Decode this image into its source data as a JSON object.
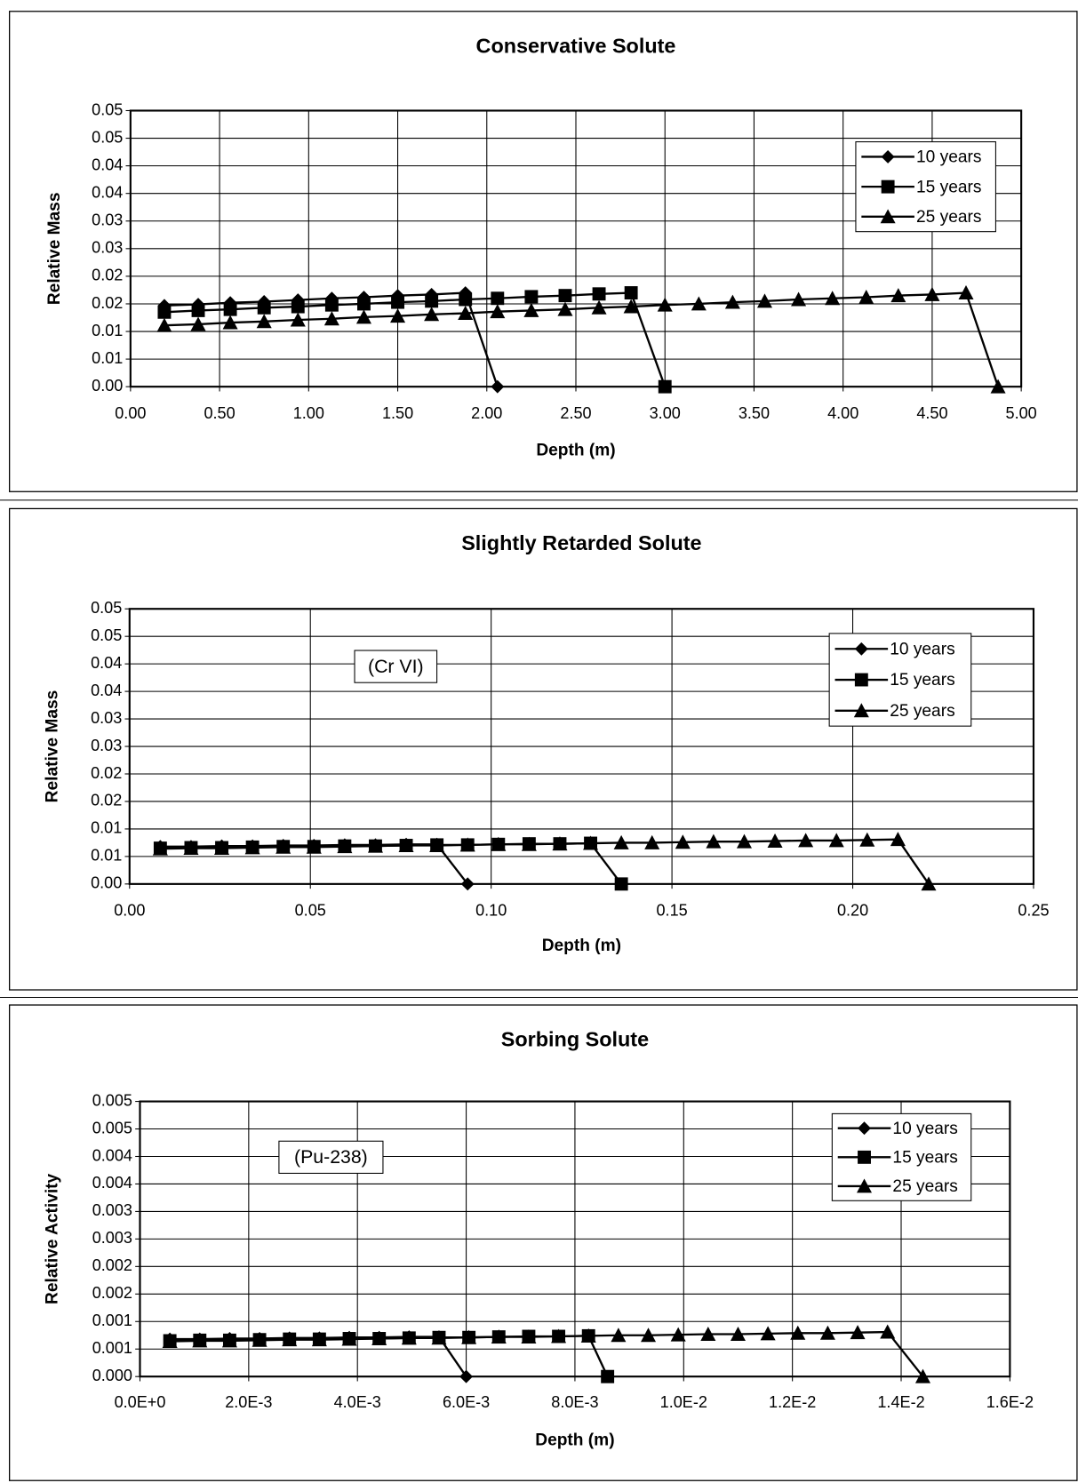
{
  "chart_data": [
    {
      "type": "line",
      "title": "Conservative Solute",
      "x_label": "Depth (m)",
      "y_label": "Relative Mass",
      "grid": true,
      "legend": "upper right",
      "xlim": [
        0,
        5
      ],
      "xticks": [
        {
          "value": 0,
          "label": "0.00"
        },
        {
          "value": 0.5,
          "label": "0.50"
        },
        {
          "value": 1,
          "label": "1.00"
        },
        {
          "value": 1.5,
          "label": "1.50"
        },
        {
          "value": 2,
          "label": "2.00"
        },
        {
          "value": 2.5,
          "label": "2.50"
        },
        {
          "value": 3,
          "label": "3.00"
        },
        {
          "value": 3.5,
          "label": "3.50"
        },
        {
          "value": 4,
          "label": "4.00"
        },
        {
          "value": 4.5,
          "label": "4.50"
        },
        {
          "value": 5,
          "label": "5.00"
        }
      ],
      "ylim": [
        0,
        0.05
      ],
      "yticks": [
        {
          "value": 0,
          "label": "0.00"
        },
        {
          "value": 0.005,
          "label": "0.01"
        },
        {
          "value": 0.01,
          "label": "0.01"
        },
        {
          "value": 0.015,
          "label": "0.02"
        },
        {
          "value": 0.02,
          "label": "0.02"
        },
        {
          "value": 0.025,
          "label": "0.03"
        },
        {
          "value": 0.03,
          "label": "0.03"
        },
        {
          "value": 0.035,
          "label": "0.04"
        },
        {
          "value": 0.04,
          "label": "0.04"
        },
        {
          "value": 0.045,
          "label": "0.05"
        },
        {
          "value": 0.05,
          "label": "0.05"
        }
      ],
      "series": [
        {
          "name": "10 years",
          "color": "#000000",
          "marker": "diamond",
          "x": [
            0.19,
            0.38,
            0.56,
            0.75,
            0.94,
            1.13,
            1.31,
            1.5,
            1.69,
            1.88,
            2.06
          ],
          "values": [
            0.0147,
            0.0149,
            0.0152,
            0.0154,
            0.0157,
            0.016,
            0.0162,
            0.0165,
            0.0167,
            0.017,
            0
          ]
        },
        {
          "name": "15 years",
          "color": "#000000",
          "marker": "square",
          "x": [
            0.19,
            0.38,
            0.56,
            0.75,
            0.94,
            1.13,
            1.31,
            1.5,
            1.69,
            1.88,
            2.06,
            2.25,
            2.44,
            2.63,
            2.81,
            3.0
          ],
          "values": [
            0.0135,
            0.0138,
            0.014,
            0.0143,
            0.0145,
            0.0148,
            0.015,
            0.0153,
            0.0155,
            0.0158,
            0.016,
            0.0163,
            0.0165,
            0.0168,
            0.017,
            0
          ]
        },
        {
          "name": "25 years",
          "color": "#000000",
          "marker": "triangle",
          "x": [
            0.19,
            0.38,
            0.56,
            0.75,
            0.94,
            1.13,
            1.31,
            1.5,
            1.69,
            1.88,
            2.06,
            2.25,
            2.44,
            2.63,
            2.81,
            3.0,
            3.19,
            3.38,
            3.56,
            3.75,
            3.94,
            4.13,
            4.31,
            4.5,
            4.69,
            4.87
          ],
          "values": [
            0.0111,
            0.0113,
            0.0116,
            0.0118,
            0.0121,
            0.0123,
            0.0126,
            0.0128,
            0.0131,
            0.0133,
            0.0136,
            0.0138,
            0.014,
            0.0143,
            0.0145,
            0.0148,
            0.015,
            0.0153,
            0.0155,
            0.0158,
            0.016,
            0.0162,
            0.0165,
            0.0167,
            0.017,
            0
          ]
        }
      ]
    },
    {
      "type": "line",
      "title": "Slightly Retarded Solute",
      "annotation": "(Cr VI)",
      "x_label": "Depth (m)",
      "y_label": "Relative Mass",
      "grid": true,
      "legend": "upper right",
      "xlim": [
        0,
        0.25
      ],
      "xticks": [
        {
          "value": 0,
          "label": "0.00"
        },
        0.05,
        {
          "value": 0.1,
          "label": "0.10"
        },
        0.15,
        {
          "value": 0.2,
          "label": "0.20"
        },
        0.25
      ],
      "ylim": [
        0,
        0.05
      ],
      "yticks": [
        {
          "value": 0,
          "label": "0.00"
        },
        {
          "value": 0.005,
          "label": "0.01"
        },
        {
          "value": 0.01,
          "label": "0.01"
        },
        {
          "value": 0.015,
          "label": "0.02"
        },
        {
          "value": 0.02,
          "label": "0.02"
        },
        {
          "value": 0.025,
          "label": "0.03"
        },
        {
          "value": 0.03,
          "label": "0.03"
        },
        {
          "value": 0.035,
          "label": "0.04"
        },
        {
          "value": 0.04,
          "label": "0.04"
        },
        {
          "value": 0.045,
          "label": "0.05"
        },
        {
          "value": 0.05,
          "label": "0.05"
        }
      ],
      "series": [
        {
          "name": "10 years",
          "color": "#000000",
          "marker": "diamond",
          "x": [
            0.0085,
            0.017,
            0.0255,
            0.034,
            0.0425,
            0.051,
            0.0595,
            0.068,
            0.0765,
            0.085,
            0.0935
          ],
          "values": [
            0.0068,
            0.0068,
            0.0069,
            0.0069,
            0.007,
            0.007,
            0.0071,
            0.0071,
            0.0072,
            0.0072,
            0
          ]
        },
        {
          "name": "15 years",
          "color": "#000000",
          "marker": "square",
          "x": [
            0.0085,
            0.017,
            0.0255,
            0.034,
            0.0425,
            0.051,
            0.0595,
            0.068,
            0.0765,
            0.085,
            0.0935,
            0.102,
            0.1105,
            0.119,
            0.1275,
            0.136
          ],
          "values": [
            0.0065,
            0.0066,
            0.0066,
            0.0067,
            0.0068,
            0.0068,
            0.0069,
            0.0069,
            0.007,
            0.0071,
            0.0071,
            0.0072,
            0.0073,
            0.0073,
            0.0074,
            0
          ]
        },
        {
          "name": "25 years",
          "color": "#000000",
          "marker": "triangle",
          "x": [
            0.0085,
            0.017,
            0.0255,
            0.034,
            0.0425,
            0.051,
            0.0595,
            0.068,
            0.0765,
            0.085,
            0.0935,
            0.102,
            0.1105,
            0.119,
            0.1275,
            0.136,
            0.1445,
            0.153,
            0.1615,
            0.17,
            0.1785,
            0.187,
            0.1955,
            0.204,
            0.2125,
            0.221
          ],
          "values": [
            0.0064,
            0.0065,
            0.0065,
            0.0066,
            0.0067,
            0.0067,
            0.0068,
            0.0069,
            0.007,
            0.007,
            0.0071,
            0.0072,
            0.0072,
            0.0073,
            0.0074,
            0.0075,
            0.0075,
            0.0076,
            0.0077,
            0.0077,
            0.0078,
            0.0079,
            0.0079,
            0.008,
            0.0081,
            0
          ]
        }
      ]
    },
    {
      "type": "line",
      "title": "Sorbing Solute",
      "annotation": "(Pu-238)",
      "x_label": "Depth (m)",
      "y_label": "Relative Activity",
      "grid": true,
      "legend": "upper right",
      "xlim": [
        0,
        0.016
      ],
      "xticks": [
        {
          "value": 0,
          "label": "0.0E+0"
        },
        {
          "value": 0.002,
          "label": "2.0E-3"
        },
        {
          "value": 0.004,
          "label": "4.0E-3"
        },
        {
          "value": 0.006,
          "label": "6.0E-3"
        },
        {
          "value": 0.008,
          "label": "8.0E-3"
        },
        {
          "value": 0.01,
          "label": "1.0E-2"
        },
        {
          "value": 0.012,
          "label": "1.2E-2"
        },
        {
          "value": 0.014,
          "label": "1.4E-2"
        },
        {
          "value": 0.016,
          "label": "1.6E-2"
        }
      ],
      "ylim": [
        0,
        0.005
      ],
      "yticks": [
        {
          "value": 0,
          "label": "0.000"
        },
        {
          "value": 0.0005,
          "label": "0.001"
        },
        {
          "value": 0.001,
          "label": "0.001"
        },
        {
          "value": 0.0015,
          "label": "0.002"
        },
        {
          "value": 0.002,
          "label": "0.002"
        },
        {
          "value": 0.0025,
          "label": "0.003"
        },
        {
          "value": 0.003,
          "label": "0.003"
        },
        {
          "value": 0.0035,
          "label": "0.004"
        },
        {
          "value": 0.004,
          "label": "0.004"
        },
        {
          "value": 0.0045,
          "label": "0.005"
        },
        {
          "value": 0.005,
          "label": "0.005"
        }
      ],
      "series": [
        {
          "name": "10 years",
          "color": "#000000",
          "marker": "diamond",
          "x": [
            0.00055,
            0.0011,
            0.00165,
            0.0022,
            0.00275,
            0.0033,
            0.00385,
            0.0044,
            0.00495,
            0.0055,
            0.006
          ],
          "values": [
            0.00068,
            0.00068,
            0.00069,
            0.00069,
            0.0007,
            0.0007,
            0.00071,
            0.00071,
            0.00072,
            0.00072,
            0
          ]
        },
        {
          "name": "15 years",
          "color": "#000000",
          "marker": "square",
          "x": [
            0.00055,
            0.0011,
            0.00165,
            0.0022,
            0.00275,
            0.0033,
            0.00385,
            0.0044,
            0.00495,
            0.0055,
            0.00605,
            0.0066,
            0.00715,
            0.0077,
            0.00825,
            0.0086
          ],
          "values": [
            0.00065,
            0.00066,
            0.00066,
            0.00067,
            0.00068,
            0.00068,
            0.00069,
            0.00069,
            0.0007,
            0.00071,
            0.00071,
            0.00072,
            0.00073,
            0.00073,
            0.00074,
            0
          ]
        },
        {
          "name": "25 years",
          "color": "#000000",
          "marker": "triangle",
          "x": [
            0.00055,
            0.0011,
            0.00165,
            0.0022,
            0.00275,
            0.0033,
            0.00385,
            0.0044,
            0.00495,
            0.0055,
            0.00605,
            0.0066,
            0.00715,
            0.0077,
            0.00825,
            0.0088,
            0.00935,
            0.0099,
            0.01045,
            0.011,
            0.01155,
            0.0121,
            0.01265,
            0.0132,
            0.01375,
            0.0144
          ],
          "values": [
            0.00064,
            0.00065,
            0.00065,
            0.00066,
            0.00067,
            0.00067,
            0.00068,
            0.00069,
            0.0007,
            0.0007,
            0.00071,
            0.00072,
            0.00072,
            0.00073,
            0.00074,
            0.00075,
            0.00075,
            0.00076,
            0.00077,
            0.00077,
            0.00078,
            0.00079,
            0.00079,
            0.0008,
            0.00081,
            0
          ]
        }
      ]
    }
  ]
}
